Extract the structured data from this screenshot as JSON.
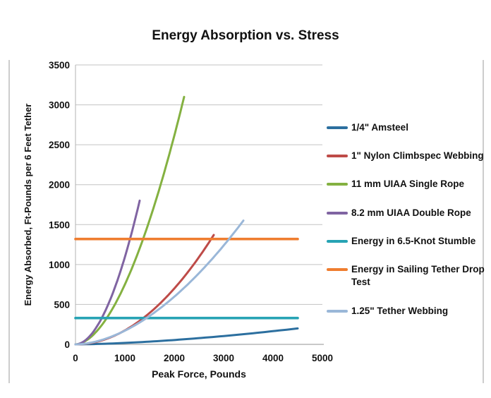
{
  "chart_data": {
    "type": "line",
    "title": "Energy Absorption vs. Stress",
    "xlabel": "Peak Force, Pounds",
    "ylabel": "Energy Absorbed, Ft-Pounds per 6 Feet Tether",
    "xlim": [
      0,
      5000
    ],
    "ylim": [
      0,
      3500
    ],
    "x_ticks": [
      0,
      1000,
      2000,
      3000,
      4000,
      5000
    ],
    "y_ticks": [
      0,
      500,
      1000,
      1500,
      2000,
      2500,
      3000,
      3500
    ],
    "grid": "horizontal",
    "legend_position": "right",
    "series": [
      {
        "name": "1/4\" Amsteel",
        "color": "#2c6f9f",
        "type": "curve",
        "exponent": 1.6,
        "end": [
          4500,
          200
        ],
        "points": [
          [
            0,
            0
          ],
          [
            1000,
            18
          ],
          [
            2000,
            55
          ],
          [
            3000,
            105
          ],
          [
            4000,
            166
          ],
          [
            4500,
            200
          ]
        ]
      },
      {
        "name": "1\" Nylon Climbspec Webbing",
        "color": "#be4b48",
        "type": "curve",
        "exponent": 2.0,
        "end": [
          2800,
          1370
        ],
        "points": [
          [
            0,
            0
          ],
          [
            500,
            44
          ],
          [
            1000,
            175
          ],
          [
            1500,
            393
          ],
          [
            2000,
            699
          ],
          [
            2500,
            1092
          ],
          [
            2800,
            1370
          ]
        ]
      },
      {
        "name": "11 mm UIAA Single Rope",
        "color": "#84b141",
        "type": "curve",
        "exponent": 1.8,
        "end": [
          2200,
          3100
        ],
        "points": [
          [
            0,
            0
          ],
          [
            500,
            216
          ],
          [
            1000,
            750
          ],
          [
            1500,
            1556
          ],
          [
            2000,
            2612
          ],
          [
            2200,
            3100
          ]
        ]
      },
      {
        "name": "8.2 mm UIAA Double Rope",
        "color": "#8064a2",
        "type": "curve",
        "exponent": 1.9,
        "end": [
          1300,
          1800
        ],
        "points": [
          [
            0,
            0
          ],
          [
            300,
            111
          ],
          [
            600,
            414
          ],
          [
            900,
            895
          ],
          [
            1100,
            1308
          ],
          [
            1300,
            1800
          ]
        ]
      },
      {
        "name": "Energy in 6.5-Knot Stumble",
        "color": "#27a3b4",
        "type": "hline",
        "value": 330,
        "x_range": [
          0,
          4500
        ],
        "points": [
          [
            0,
            330
          ],
          [
            4500,
            330
          ]
        ]
      },
      {
        "name": "Energy in Sailing Tether Drop Test",
        "name_lines": [
          "Energy in Sailing Tether Drop",
          "Test"
        ],
        "color": "#ef7d2f",
        "type": "hline",
        "value": 1320,
        "x_range": [
          0,
          4500
        ],
        "points": [
          [
            0,
            1320
          ],
          [
            4500,
            1320
          ]
        ]
      },
      {
        "name": "1.25\" Tether Webbing",
        "color": "#9ab7d8",
        "type": "curve",
        "exponent": 1.8,
        "end": [
          3400,
          1550
        ],
        "points": [
          [
            0,
            0
          ],
          [
            500,
            49
          ],
          [
            1000,
            172
          ],
          [
            1500,
            355
          ],
          [
            2000,
            596
          ],
          [
            2500,
            891
          ],
          [
            3000,
            1237
          ],
          [
            3400,
            1550
          ]
        ]
      }
    ]
  }
}
